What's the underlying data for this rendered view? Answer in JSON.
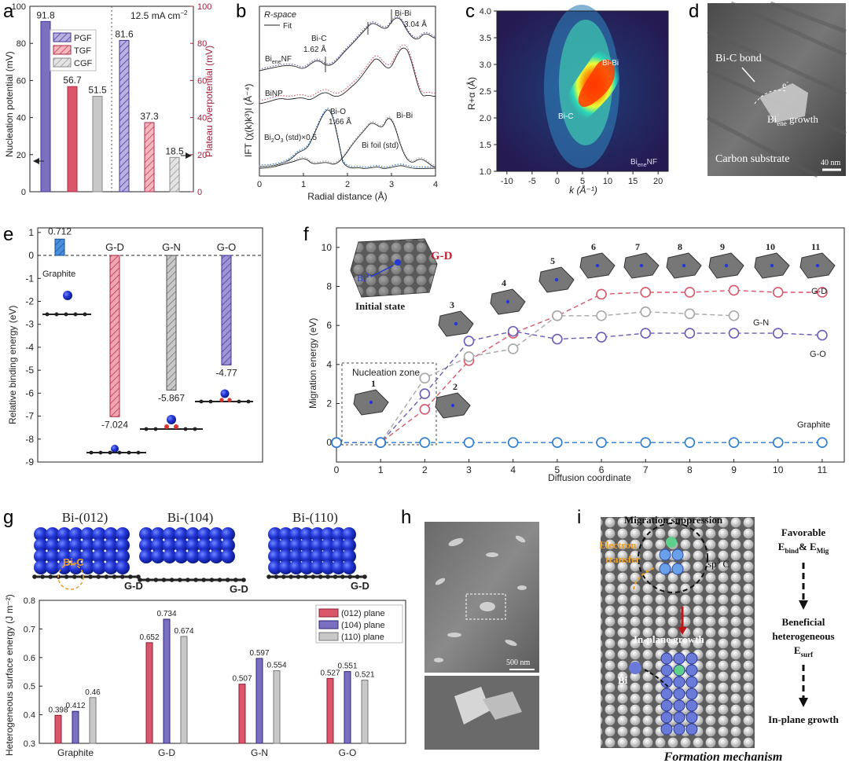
{
  "panels": {
    "a": {
      "label": "a",
      "condition": "12.5 mA cm",
      "condition_sup": "−2",
      "ylabel_left": "Nucleation potential (mV)",
      "ylabel_right": "Plateau overpotential (mV)"
    },
    "b": {
      "label": "b",
      "space": "R-space",
      "fit_label": "Fit",
      "xlabel": "Radial distance (Å)",
      "ylabel": "IFT (χ(k)k³)I (Å⁻⁴)",
      "curves": [
        "BienēNF",
        "BiNP",
        "Bi₂O₃ (std)×0.5",
        "Bi foil (std)"
      ],
      "curve_main_1": "Bi",
      "curve_sub_1": "ene",
      "curve_tail_1": "NF",
      "curve_2": "BiNP",
      "curve_3a": "Bi",
      "curve_3b": "2",
      "curve_3c": "O",
      "curve_3d": "3",
      "curve_3e": " (std)×0.5",
      "curve_4": "Bi foil (std)",
      "ann_bic": "Bi-C",
      "ann_bic_val": "1.62 Å",
      "ann_bibi": "Bi-Bi",
      "ann_bibi_val": "3.04 Å",
      "ann_bio": "Bi-O",
      "ann_bio_val": "1.66 Å",
      "ann_bibi2": "Bi-Bi"
    },
    "c": {
      "label": "c",
      "xlabel": "k (Å⁻¹)",
      "ylabel": "R+α (Å)",
      "ann_bibi": "Bi-Bi",
      "ann_bic": "Bi-C",
      "sample": "Bi",
      "sample_sub": "ene",
      "sample_tail": "NF"
    },
    "d": {
      "label": "d",
      "ann_bond": "Bi-C bond",
      "ann_e": "e",
      "ann_growth": "Bi",
      "ann_growth_sub": "ene",
      "ann_growth_tail": " growth",
      "substrate": "Carbon substrate",
      "scale": "40 nm"
    },
    "e": {
      "label": "e",
      "ylabel": "Relative binding energy (eV)",
      "graphite_label": "Graphite"
    },
    "f": {
      "label": "f",
      "xlabel": "Diffusion coordinate",
      "ylabel": "Migration energy (eV)",
      "nucleation_zone": "Nucleation zone",
      "initial_state": "Initial state",
      "gd_title": "G-D",
      "bi_ion": "Bi",
      "bi_ion_sup": "3+"
    },
    "g": {
      "label": "g",
      "struct_titles": [
        "Bi-(012)",
        "Bi-(104)",
        "Bi-(110)"
      ],
      "struct_sub": "G-D",
      "bic": "Bi-C",
      "ylabel": "Heterogeneous surface energy (J m⁻²)"
    },
    "h": {
      "label": "h",
      "scale": "500 nm"
    },
    "i": {
      "label": "i",
      "top": "Migration suppression",
      "elec1": "Electron",
      "elec2": "transfer",
      "sp": "sp",
      "sp_sup": "3",
      "sp_tail": " C",
      "inplane": "In-plane growth",
      "bi": "Bi",
      "flow1": "Favorable",
      "flow1b": "E",
      "flow1b_sub": "bind",
      "flow1b_mid": "& E",
      "flow1b_sub2": "Mig",
      "flow2": "Beneficial",
      "flow2b": "heterogeneous",
      "flow2c": "E",
      "flow2c_sub": "surf",
      "flow3": "In-plane growth",
      "caption": "Formation mechanism"
    }
  },
  "colors": {
    "pgf": "#7b6fc0",
    "tgf": "#d9566b",
    "cgf": "#c0c0c0",
    "graphite": "#2b7bd1",
    "gd": "#d9566b",
    "gn": "#a6a6a6",
    "go": "#6a5cb8",
    "axis_right": "#a0203a"
  },
  "chart_data": [
    {
      "panel": "a",
      "type": "bar",
      "title": "",
      "legend": [
        "PGF",
        "TGF",
        "CGF"
      ],
      "left": {
        "ylabel": "Nucleation potential (mV)",
        "ylim": [
          0,
          100
        ],
        "ticks": [
          0,
          20,
          40,
          60,
          80,
          100
        ],
        "series": [
          {
            "name": "PGF",
            "value": 91.8
          },
          {
            "name": "TGF",
            "value": 56.7
          },
          {
            "name": "CGF",
            "value": 51.5
          }
        ]
      },
      "right": {
        "ylabel": "Plateau overpotential (mV)",
        "ylim": [
          0,
          100
        ],
        "ticks": [
          0,
          20,
          40,
          60,
          80,
          100
        ],
        "series": [
          {
            "name": "PGF",
            "value": 81.6
          },
          {
            "name": "TGF",
            "value": 37.3
          },
          {
            "name": "CGF",
            "value": 18.5
          }
        ]
      }
    },
    {
      "panel": "b",
      "type": "line",
      "xlabel": "Radial distance (Å)",
      "xlim": [
        0,
        4
      ],
      "xticks": [
        0,
        1,
        2,
        3,
        4
      ],
      "series": [
        "BieneNF",
        "BiNP",
        "Bi2O3 (std)×0.5",
        "Bi foil (std)"
      ]
    },
    {
      "panel": "c",
      "type": "heatmap",
      "xlabel": "k (Å⁻¹)",
      "ylabel": "R+α (Å)",
      "xlim": [
        -12,
        22
      ],
      "ylim": [
        1.0,
        4.0
      ],
      "xticks": [
        -10,
        -5,
        0,
        5,
        10,
        15,
        20
      ],
      "yticks": [
        1.0,
        1.5,
        2.0,
        2.5,
        3.0,
        3.5,
        4.0
      ],
      "yticklabels": [
        "1.0",
        "1.5",
        "2.0",
        "2.5",
        "3.0",
        "3.5",
        "4.0"
      ]
    },
    {
      "panel": "e",
      "type": "bar",
      "ylabel": "Relative binding energy (eV)",
      "ylim": [
        -9,
        1.2
      ],
      "yticks": [
        -9,
        -8,
        -7,
        -6,
        -5,
        -4,
        -3,
        -2,
        -1,
        0,
        1
      ],
      "yticklabels": [
        "-9",
        "-8",
        "-7",
        "-6",
        "-5",
        "-4",
        "-3",
        "-2",
        "-1",
        "0",
        "1"
      ],
      "categories": [
        "Graphite",
        "G-D",
        "G-N",
        "G-O"
      ],
      "values": [
        0.712,
        -7.024,
        -5.867,
        -4.77
      ],
      "value_labels": [
        "0.712",
        "-7.024",
        "-5.867",
        "-4.77"
      ]
    },
    {
      "panel": "f",
      "type": "line",
      "xlabel": "Diffusion coordinate",
      "ylabel": "Migration energy (eV)",
      "xlim": [
        0,
        11.5
      ],
      "ylim": [
        -1,
        11
      ],
      "xticks": [
        0,
        1,
        2,
        3,
        4,
        5,
        6,
        7,
        8,
        9,
        10,
        11
      ],
      "yticks": [
        0,
        2,
        4,
        6,
        8,
        10
      ],
      "x": [
        0,
        1,
        2,
        3,
        4,
        5,
        6,
        7,
        8,
        9,
        10,
        11
      ],
      "series": [
        {
          "name": "G-D",
          "values": [
            0,
            0,
            1.7,
            4.2,
            5.6,
            6.5,
            7.6,
            7.7,
            7.7,
            7.8,
            7.7,
            7.7
          ]
        },
        {
          "name": "G-N",
          "values": [
            0,
            0,
            3.3,
            4.4,
            4.8,
            6.5,
            6.5,
            6.7,
            6.6,
            6.5,
            null,
            null
          ]
        },
        {
          "name": "G-O",
          "values": [
            0,
            0,
            2.5,
            5.2,
            5.7,
            5.3,
            5.4,
            5.6,
            5.6,
            5.6,
            5.6,
            5.5
          ]
        },
        {
          "name": "Graphite",
          "values": [
            0,
            0,
            0,
            0,
            0,
            0,
            0,
            0,
            0,
            0,
            0,
            0
          ]
        }
      ],
      "state_numbers": [
        "1",
        "2",
        "3",
        "4",
        "5",
        "6",
        "7",
        "8",
        "9",
        "10",
        "11"
      ]
    },
    {
      "panel": "g",
      "type": "bar",
      "ylabel": "Heterogeneous surface energy (J m⁻²)",
      "ylim": [
        0.3,
        0.8
      ],
      "yticks": [
        0.3,
        0.4,
        0.5,
        0.6,
        0.7,
        0.8
      ],
      "yticklabels": [
        "0.3",
        "0.4",
        "0.5",
        "0.6",
        "0.7",
        "0.8"
      ],
      "categories": [
        "Graphite",
        "G-D",
        "G-N",
        "G-O"
      ],
      "legend": [
        "(012) plane",
        "(104) plane",
        "(110) plane"
      ],
      "series": [
        {
          "name": "(012) plane",
          "values": [
            0.398,
            0.652,
            0.507,
            0.527
          ],
          "labels": [
            "0.398",
            "0.652",
            "0.507",
            "0.527"
          ]
        },
        {
          "name": "(104) plane",
          "values": [
            0.412,
            0.734,
            0.597,
            0.551
          ],
          "labels": [
            "0.412",
            "0.734",
            "0.597",
            "0.551"
          ]
        },
        {
          "name": "(110) plane",
          "values": [
            0.46,
            0.674,
            0.554,
            0.521
          ],
          "labels": [
            "0.46",
            "0.674",
            "0.554",
            "0.521"
          ]
        }
      ]
    }
  ]
}
